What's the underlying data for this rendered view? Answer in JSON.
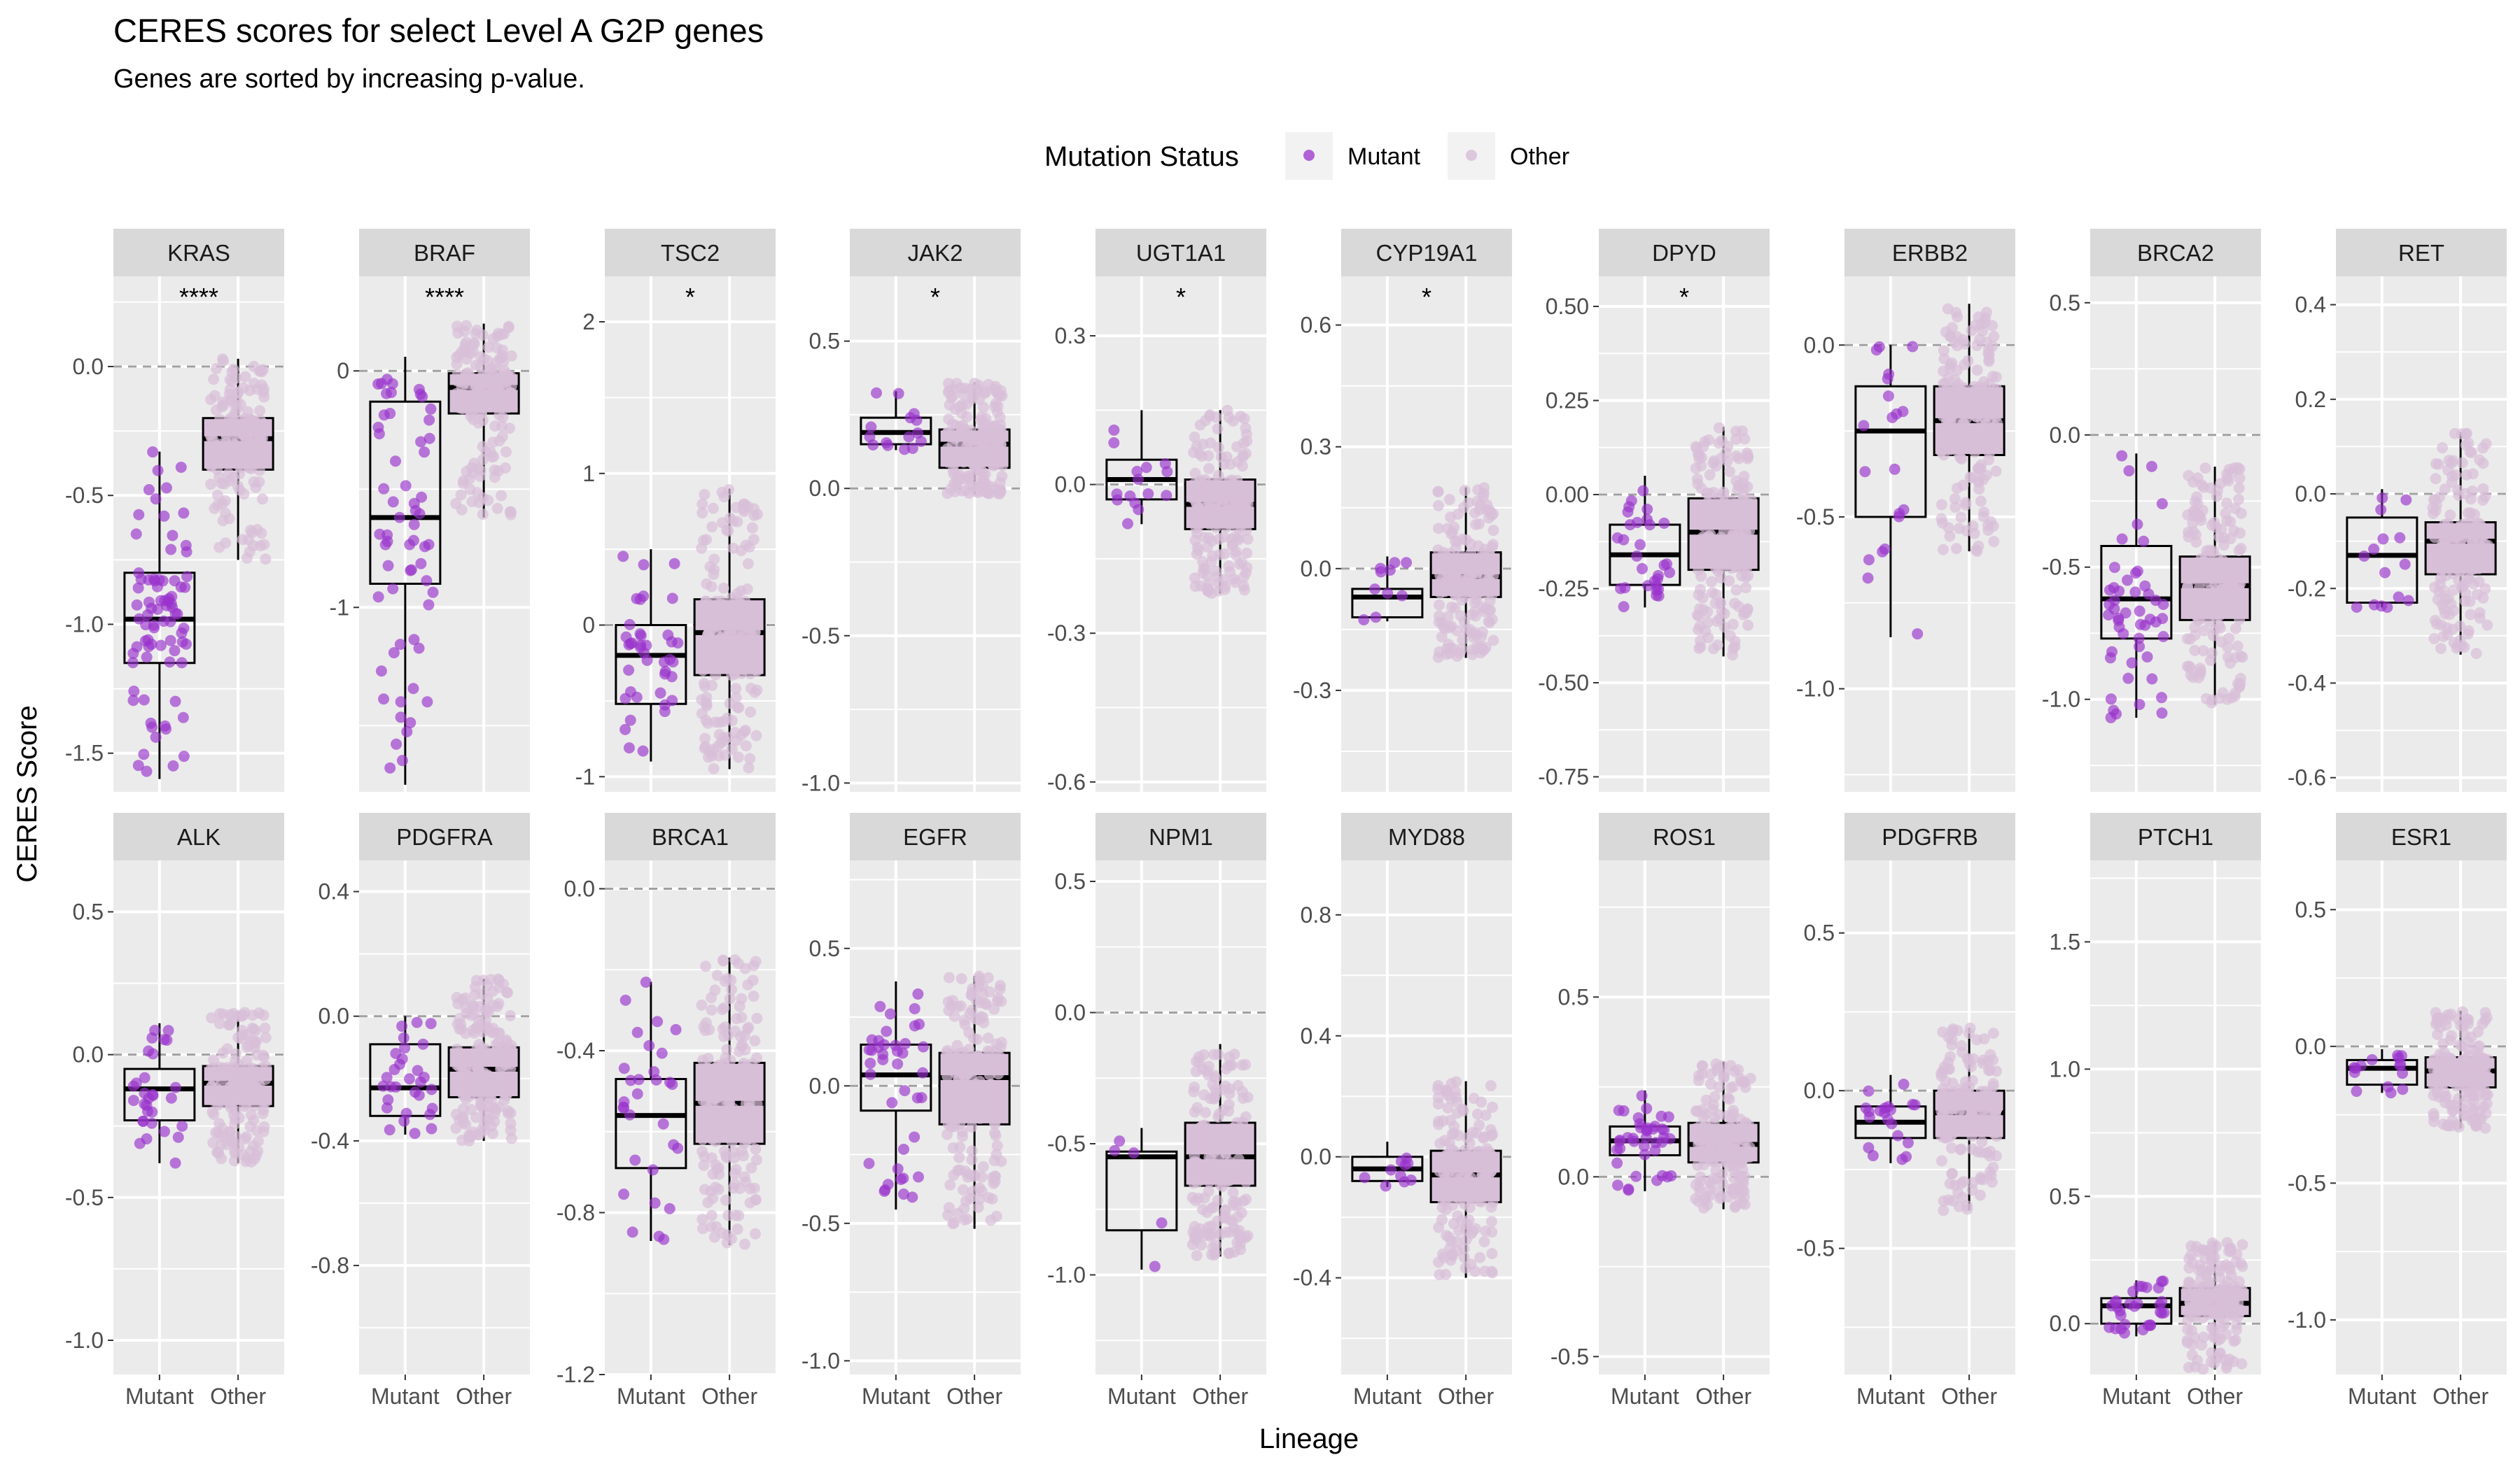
{
  "title": "CERES scores for select Level A G2P genes",
  "subtitle": "Genes are sorted by increasing p-value.",
  "legend": {
    "title": "Mutation Status",
    "items": [
      {
        "label": "Mutant",
        "color": "#9932CC"
      },
      {
        "label": "Other",
        "color": "#D8BFD8"
      }
    ]
  },
  "colors": {
    "panel_bg": "#EBEBEB",
    "strip_bg": "#D9D9D9",
    "grid": "#FFFFFF",
    "mutant_point": "#9932CC",
    "other_point": "#D8BFD8",
    "box_fill": "#D8BFD8",
    "reference_line": "#A0A0A0"
  },
  "chart_data": {
    "type": "box",
    "xlabel": "Lineage",
    "ylabel": "CERES Score",
    "categories": [
      "Mutant",
      "Other"
    ],
    "reference_line_y": 0,
    "grid": true,
    "legend_position": "top",
    "panels": [
      {
        "gene": "KRAS",
        "sig": "****",
        "ylim": [
          -1.65,
          0.35
        ],
        "ticks": [
          -1.5,
          -1.0,
          -0.5,
          0.0
        ],
        "tick_labels": [
          "-1.5",
          "-1.0",
          "-0.5",
          "0.0"
        ],
        "mutant": {
          "min": -1.6,
          "q1": -1.15,
          "median": -0.98,
          "q3": -0.8,
          "max": -0.33,
          "n": 80
        },
        "other": {
          "min": -0.75,
          "q1": -0.4,
          "median": -0.28,
          "q3": -0.2,
          "max": 0.03,
          "n": 160
        }
      },
      {
        "gene": "BRAF",
        "sig": "****",
        "ylim": [
          -1.78,
          0.4
        ],
        "ticks": [
          -1.0,
          0.0
        ],
        "tick_labels": [
          "-1",
          "0"
        ],
        "mutant": {
          "min": -1.75,
          "q1": -0.9,
          "median": -0.62,
          "q3": -0.13,
          "max": 0.06,
          "n": 60
        },
        "other": {
          "min": -0.62,
          "q1": -0.18,
          "median": -0.07,
          "q3": -0.01,
          "max": 0.2,
          "n": 180
        }
      },
      {
        "gene": "TSC2",
        "sig": "*",
        "ylim": [
          -1.1,
          2.3
        ],
        "ticks": [
          -1,
          0,
          1,
          2
        ],
        "tick_labels": [
          "-1",
          "0",
          "1",
          "2"
        ],
        "mutant": {
          "min": -0.9,
          "q1": -0.52,
          "median": -0.2,
          "q3": 0.0,
          "max": 0.5,
          "n": 40
        },
        "other": {
          "min": -0.95,
          "q1": -0.33,
          "median": -0.05,
          "q3": 0.17,
          "max": 0.9,
          "n": 200
        }
      },
      {
        "gene": "JAK2",
        "sig": "*",
        "ylim": [
          -1.03,
          0.72
        ],
        "ticks": [
          -1.0,
          -0.5,
          0.0,
          0.5
        ],
        "tick_labels": [
          "-1.0",
          "-0.5",
          "0.0",
          "0.5"
        ],
        "mutant": {
          "min": 0.13,
          "q1": 0.15,
          "median": 0.19,
          "q3": 0.24,
          "max": 0.33,
          "n": 15
        },
        "other": {
          "min": -0.02,
          "q1": 0.07,
          "median": 0.15,
          "q3": 0.2,
          "max": 0.36,
          "n": 200
        }
      },
      {
        "gene": "UGT1A1",
        "sig": "*",
        "ylim": [
          -0.62,
          0.42
        ],
        "ticks": [
          -0.6,
          -0.3,
          0.0,
          0.3
        ],
        "tick_labels": [
          "-0.6",
          "-0.3",
          "0.0",
          "0.3"
        ],
        "mutant": {
          "min": -0.08,
          "q1": -0.03,
          "median": 0.01,
          "q3": 0.05,
          "max": 0.15,
          "n": 15
        },
        "other": {
          "min": -0.22,
          "q1": -0.09,
          "median": -0.04,
          "q3": 0.01,
          "max": 0.15,
          "n": 200
        }
      },
      {
        "gene": "CYP19A1",
        "sig": "*",
        "ylim": [
          -0.55,
          0.72
        ],
        "ticks": [
          -0.3,
          0.0,
          0.3,
          0.6
        ],
        "tick_labels": [
          "-0.3",
          "0.0",
          "0.3",
          "0.6"
        ],
        "mutant": {
          "min": -0.13,
          "q1": -0.12,
          "median": -0.07,
          "q3": -0.05,
          "max": 0.03,
          "n": 10
        },
        "other": {
          "min": -0.22,
          "q1": -0.07,
          "median": -0.02,
          "q3": 0.04,
          "max": 0.2,
          "n": 200
        }
      },
      {
        "gene": "DPYD",
        "sig": "*",
        "ylim": [
          -0.79,
          0.58
        ],
        "ticks": [
          -0.75,
          -0.5,
          -0.25,
          0.0,
          0.25,
          0.5
        ],
        "tick_labels": [
          "-0.75",
          "-0.50",
          "-0.25",
          "0.00",
          "0.25",
          "0.50"
        ],
        "mutant": {
          "min": -0.3,
          "q1": -0.24,
          "median": -0.16,
          "q3": -0.08,
          "max": 0.05,
          "n": 30
        },
        "other": {
          "min": -0.43,
          "q1": -0.2,
          "median": -0.1,
          "q3": -0.01,
          "max": 0.18,
          "n": 200
        }
      },
      {
        "gene": "ERBB2",
        "sig": "",
        "ylim": [
          -1.3,
          0.2
        ],
        "ticks": [
          -1.0,
          -0.5,
          0.0
        ],
        "tick_labels": [
          "-1.0",
          "-0.5",
          "0.0"
        ],
        "mutant": {
          "min": -0.85,
          "q1": -0.5,
          "median": -0.25,
          "q3": -0.12,
          "max": 0.0,
          "n": 20
        },
        "other": {
          "min": -0.6,
          "q1": -0.32,
          "median": -0.22,
          "q3": -0.12,
          "max": 0.12,
          "n": 200
        }
      },
      {
        "gene": "BRCA2",
        "sig": "",
        "ylim": [
          -1.35,
          0.6
        ],
        "ticks": [
          -1.0,
          -0.5,
          0.0,
          0.5
        ],
        "tick_labels": [
          "-1.0",
          "-0.5",
          "0.0",
          "0.5"
        ],
        "mutant": {
          "min": -1.07,
          "q1": -0.77,
          "median": -0.62,
          "q3": -0.42,
          "max": -0.07,
          "n": 50
        },
        "other": {
          "min": -1.02,
          "q1": -0.7,
          "median": -0.57,
          "q3": -0.46,
          "max": -0.12,
          "n": 200
        }
      },
      {
        "gene": "RET",
        "sig": "",
        "ylim": [
          -0.63,
          0.46
        ],
        "ticks": [
          -0.6,
          -0.4,
          -0.2,
          0.0,
          0.2,
          0.4
        ],
        "tick_labels": [
          "-0.6",
          "-0.4",
          "-0.2",
          "0.0",
          "0.2",
          "0.4"
        ],
        "mutant": {
          "min": -0.24,
          "q1": -0.23,
          "median": -0.13,
          "q3": -0.05,
          "max": 0.01,
          "n": 15
        },
        "other": {
          "min": -0.34,
          "q1": -0.17,
          "median": -0.1,
          "q3": -0.06,
          "max": 0.13,
          "n": 200
        }
      },
      {
        "gene": "ALK",
        "sig": "",
        "ylim": [
          -1.12,
          0.68
        ],
        "ticks": [
          -1.0,
          -0.5,
          0.0,
          0.5
        ],
        "tick_labels": [
          "-1.0",
          "-0.5",
          "0.0",
          "0.5"
        ],
        "mutant": {
          "min": -0.38,
          "q1": -0.23,
          "median": -0.12,
          "q3": -0.05,
          "max": 0.11,
          "n": 30
        },
        "other": {
          "min": -0.38,
          "q1": -0.18,
          "median": -0.1,
          "q3": -0.04,
          "max": 0.15,
          "n": 200
        }
      },
      {
        "gene": "PDGFRA",
        "sig": "",
        "ylim": [
          -1.15,
          0.5
        ],
        "ticks": [
          -0.8,
          -0.4,
          0.0,
          0.4
        ],
        "tick_labels": [
          "-0.8",
          "-0.4",
          "0.0",
          "0.4"
        ],
        "mutant": {
          "min": -0.38,
          "q1": -0.32,
          "median": -0.23,
          "q3": -0.09,
          "max": 0.0,
          "n": 30
        },
        "other": {
          "min": -0.4,
          "q1": -0.26,
          "median": -0.17,
          "q3": -0.1,
          "max": 0.12,
          "n": 200
        }
      },
      {
        "gene": "BRCA1",
        "sig": "",
        "ylim": [
          -1.2,
          0.07
        ],
        "ticks": [
          -1.2,
          -0.8,
          -0.4,
          0.0
        ],
        "tick_labels": [
          "-1.2",
          "-0.8",
          "-0.4",
          "0.0"
        ],
        "mutant": {
          "min": -0.87,
          "q1": -0.69,
          "median": -0.56,
          "q3": -0.47,
          "max": -0.23,
          "n": 30
        },
        "other": {
          "min": -0.88,
          "q1": -0.63,
          "median": -0.53,
          "q3": -0.43,
          "max": -0.17,
          "n": 200
        }
      },
      {
        "gene": "EGFR",
        "sig": "",
        "ylim": [
          -1.05,
          0.82
        ],
        "ticks": [
          -1.0,
          -0.5,
          0.0,
          0.5
        ],
        "tick_labels": [
          "-1.0",
          "-0.5",
          "0.0",
          "0.5"
        ],
        "mutant": {
          "min": -0.45,
          "q1": -0.09,
          "median": 0.04,
          "q3": 0.15,
          "max": 0.38,
          "n": 40
        },
        "other": {
          "min": -0.52,
          "q1": -0.14,
          "median": 0.03,
          "q3": 0.12,
          "max": 0.4,
          "n": 200
        }
      },
      {
        "gene": "NPM1",
        "sig": "",
        "ylim": [
          -1.38,
          0.58
        ],
        "ticks": [
          -1.0,
          -0.5,
          0.0,
          0.5
        ],
        "tick_labels": [
          "-1.0",
          "-0.5",
          "0.0",
          "0.5"
        ],
        "mutant": {
          "min": -0.98,
          "q1": -0.83,
          "median": -0.55,
          "q3": -0.53,
          "max": -0.44,
          "n": 5
        },
        "other": {
          "min": -0.93,
          "q1": -0.66,
          "median": -0.55,
          "q3": -0.42,
          "max": -0.12,
          "n": 200
        }
      },
      {
        "gene": "MYD88",
        "sig": "",
        "ylim": [
          -0.72,
          0.98
        ],
        "ticks": [
          -0.4,
          0.0,
          0.4,
          0.8
        ],
        "tick_labels": [
          "-0.4",
          "0.0",
          "0.4",
          "0.8"
        ],
        "mutant": {
          "min": -0.1,
          "q1": -0.08,
          "median": -0.04,
          "q3": 0.0,
          "max": 0.05,
          "n": 10
        },
        "other": {
          "min": -0.4,
          "q1": -0.15,
          "median": -0.06,
          "q3": 0.02,
          "max": 0.25,
          "n": 200
        }
      },
      {
        "gene": "ROS1",
        "sig": "",
        "ylim": [
          -0.55,
          0.88
        ],
        "ticks": [
          -0.5,
          0.0,
          0.5
        ],
        "tick_labels": [
          "-0.5",
          "0.0",
          "0.5"
        ],
        "mutant": {
          "min": -0.04,
          "q1": 0.06,
          "median": 0.1,
          "q3": 0.14,
          "max": 0.24,
          "n": 40
        },
        "other": {
          "min": -0.09,
          "q1": 0.04,
          "median": 0.09,
          "q3": 0.15,
          "max": 0.32,
          "n": 200
        }
      },
      {
        "gene": "PDGFRB",
        "sig": "",
        "ylim": [
          -0.9,
          0.73
        ],
        "ticks": [
          -0.5,
          0.0,
          0.5
        ],
        "tick_labels": [
          "-0.5",
          "0.0",
          "0.5"
        ],
        "mutant": {
          "min": -0.23,
          "q1": -0.15,
          "median": -0.1,
          "q3": -0.05,
          "max": 0.05,
          "n": 20
        },
        "other": {
          "min": -0.38,
          "q1": -0.15,
          "median": -0.07,
          "q3": 0.0,
          "max": 0.2,
          "n": 200
        }
      },
      {
        "gene": "PTCH1",
        "sig": "",
        "ylim": [
          -0.2,
          1.82
        ],
        "ticks": [
          0.0,
          0.5,
          1.0,
          1.5
        ],
        "tick_labels": [
          "0.0",
          "0.5",
          "1.0",
          "1.5"
        ],
        "mutant": {
          "min": -0.05,
          "q1": 0.0,
          "median": 0.07,
          "q3": 0.1,
          "max": 0.17,
          "n": 30
        },
        "other": {
          "min": -0.18,
          "q1": 0.03,
          "median": 0.08,
          "q3": 0.14,
          "max": 0.32,
          "n": 200
        }
      },
      {
        "gene": "ESR1",
        "sig": "",
        "ylim": [
          -1.2,
          0.68
        ],
        "ticks": [
          -1.0,
          -0.5,
          0.0,
          0.5
        ],
        "tick_labels": [
          "-1.0",
          "-0.5",
          "0.0",
          "0.5"
        ],
        "mutant": {
          "min": -0.17,
          "q1": -0.14,
          "median": -0.08,
          "q3": -0.05,
          "max": -0.01,
          "n": 15
        },
        "other": {
          "min": -0.3,
          "q1": -0.15,
          "median": -0.09,
          "q3": -0.04,
          "max": 0.13,
          "n": 200
        }
      }
    ]
  }
}
